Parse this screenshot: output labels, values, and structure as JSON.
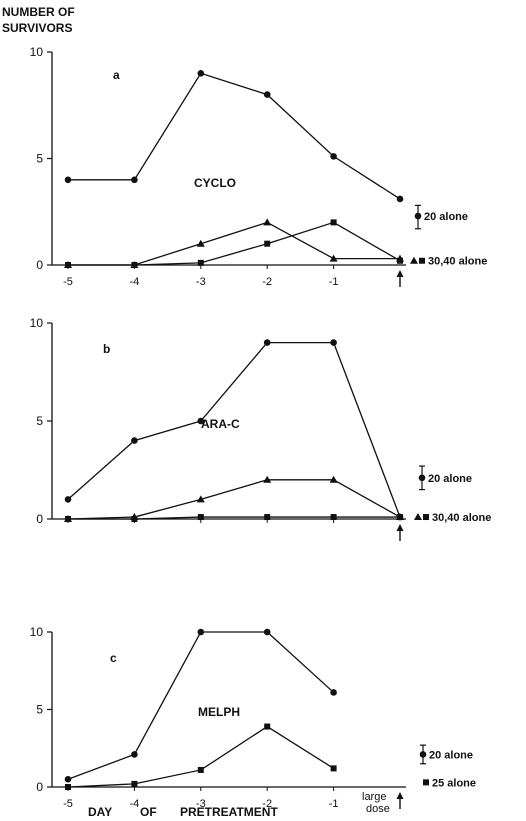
{
  "figure": {
    "ylabel_line1": "NUMBER OF",
    "ylabel_line2": "SURVIVORS",
    "xlabel_parts": [
      "DAY",
      "OF",
      "PRETREATMENT"
    ],
    "large_dose_line1": "large",
    "large_dose_line2": "dose",
    "colors": {
      "ink": "#111111",
      "background": "#ffffff"
    }
  },
  "chart_data": [
    {
      "type": "line",
      "panel": "a",
      "drug_label": "CYCLO",
      "x": [
        -5,
        -4,
        -3,
        -2,
        -1,
        0
      ],
      "x_tick_labels": [
        "-5",
        "-4",
        "-3",
        "-2",
        "-1"
      ],
      "y_ticks": [
        "0",
        "5",
        "10"
      ],
      "ylim": [
        0,
        10
      ],
      "series": [
        {
          "marker": "circle",
          "values": [
            4,
            4,
            9,
            8,
            5.1,
            3.1
          ]
        },
        {
          "marker": "triangle",
          "values": [
            0,
            0,
            1,
            2,
            0.3,
            0.3
          ]
        },
        {
          "marker": "square",
          "values": [
            0,
            0,
            0.1,
            1,
            2,
            0.2
          ]
        }
      ],
      "reference_markers": [
        {
          "marker": "circle-errorbar",
          "label": "20 alone",
          "value": 2.3,
          "range": [
            1.7,
            2.8
          ]
        },
        {
          "marker": "triangle-square",
          "label": "30,40 alone",
          "value": 0.2
        }
      ],
      "arrow_at_x": 0
    },
    {
      "type": "line",
      "panel": "b",
      "drug_label": "ARA-C",
      "x": [
        -5,
        -4,
        -3,
        -2,
        -1,
        0
      ],
      "x_tick_labels": [],
      "y_ticks": [
        "0",
        "5",
        "10"
      ],
      "ylim": [
        0,
        10
      ],
      "series": [
        {
          "marker": "circle",
          "values": [
            1,
            4,
            5,
            9,
            9,
            0.1
          ]
        },
        {
          "marker": "triangle",
          "values": [
            0,
            0.1,
            1,
            2,
            2,
            0.1
          ]
        },
        {
          "marker": "square",
          "values": [
            0,
            0,
            0.1,
            0.1,
            0.1,
            0.1
          ]
        }
      ],
      "reference_markers": [
        {
          "marker": "circle-errorbar",
          "label": "20 alone",
          "value": 2.1,
          "range": [
            1.5,
            2.7
          ]
        },
        {
          "marker": "triangle-square",
          "label": "30,40 alone",
          "value": 0.1
        }
      ],
      "arrow_at_x": 0
    },
    {
      "type": "line",
      "panel": "c",
      "drug_label": "MELPH",
      "x": [
        -5,
        -4,
        -3,
        -2,
        -1,
        0
      ],
      "x_tick_labels": [
        "-5",
        "-4",
        "-3",
        "-2",
        "-1"
      ],
      "y_ticks": [
        "0",
        "5",
        "10"
      ],
      "ylim": [
        0,
        10
      ],
      "series": [
        {
          "marker": "circle",
          "values": [
            0.5,
            2.1,
            10,
            10,
            6.1,
            null
          ]
        },
        {
          "marker": "square",
          "values": [
            0,
            0.2,
            1.1,
            3.9,
            1.2,
            null
          ]
        }
      ],
      "reference_markers": [
        {
          "marker": "circle-errorbar",
          "label": "20 alone",
          "value": 2.1,
          "range": [
            1.5,
            2.7
          ]
        },
        {
          "marker": "square",
          "label": "25 alone",
          "value": 0.3
        }
      ],
      "arrow_at_x": 0
    }
  ]
}
